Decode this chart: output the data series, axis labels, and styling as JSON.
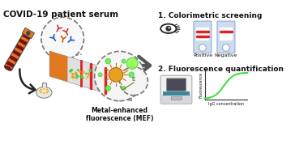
{
  "title_text": "COVID-19 patient serum",
  "label1": "1. Colorimetric screening",
  "label2": "2. Fluorescence quantification",
  "mef_label": "Metal-enhanced\nfluorescence (MEF)",
  "positive_label": "Positive",
  "negative_label": "Negative",
  "fluorescence_ylabel": "Fluorescence",
  "fluorescence_xlabel": "IgG concentration",
  "bg_color": "#ffffff",
  "strip_line_color": "#cc2222",
  "nanoparticle_color": "#e8a020",
  "green_color": "#44cc44",
  "dashed_circle_color": "#777777",
  "tube_orange": "#e07820",
  "tube_yellow": "#f0c030",
  "tube_red": "#7a1010",
  "plot_line_color": "#44dd44",
  "text_color": "#111111",
  "gray_strip": "#b0b0b0",
  "light_gray": "#d8d8d8",
  "strip_bg": "#ccddf0"
}
